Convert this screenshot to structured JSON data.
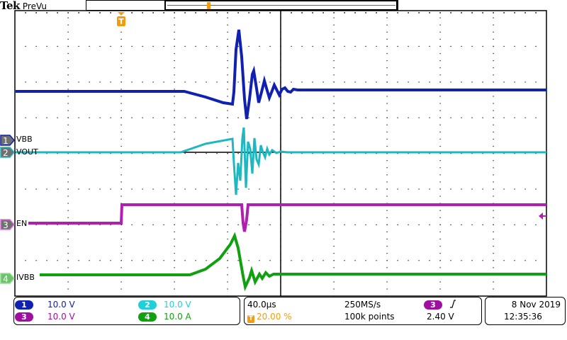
{
  "header": {
    "brand": "Tek",
    "mode": "PreVu"
  },
  "colors": {
    "ch1": "#1020b0",
    "ch2": "#1fb8c0",
    "ch3": "#b020b0",
    "ch4": "#10a010",
    "trigger": "#f39c12",
    "grid": "#000000"
  },
  "channels": [
    {
      "number": "1",
      "label": "VBB",
      "scale": "10.0 V",
      "color": "#1020b0"
    },
    {
      "number": "2",
      "label": "VOUT",
      "scale": "10.0 V",
      "color": "#1fb8c0"
    },
    {
      "number": "3",
      "label": "EN",
      "scale": "10.0 V",
      "color": "#b020b0"
    },
    {
      "number": "4",
      "label": "IVBB",
      "scale": "10.0 A",
      "color": "#10a010"
    }
  ],
  "timebase": {
    "horizontal_scale": "40.0µs",
    "trigger_position": "20.00 %",
    "sample_rate": "250MS/s",
    "record_length": "100k points"
  },
  "trigger": {
    "source": "3",
    "slope_icon": "rising-edge",
    "slope_glyph": "⎍",
    "level": "2.40 V",
    "marker": "T"
  },
  "datetime": {
    "date": "8 Nov 2019",
    "time": "12:35:36"
  }
}
